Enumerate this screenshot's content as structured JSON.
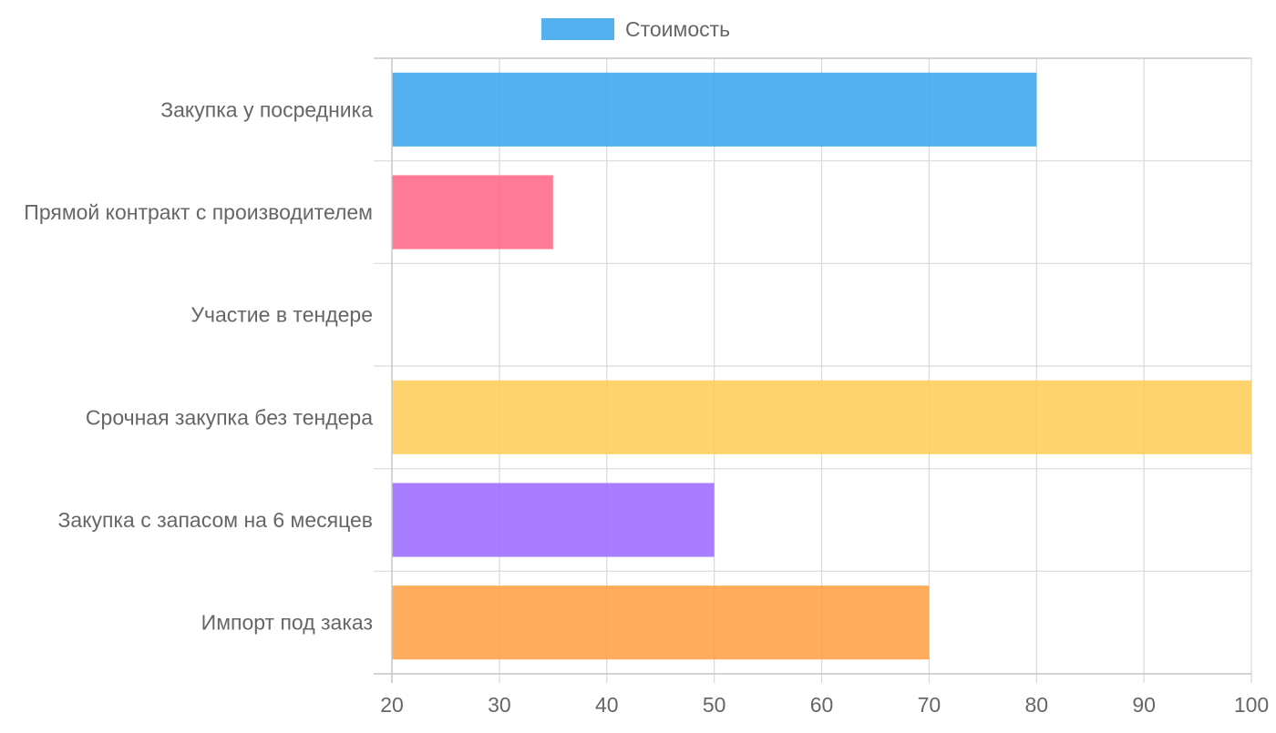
{
  "chart_data": {
    "type": "bar",
    "orientation": "horizontal",
    "legend": {
      "position": "top-center",
      "entries": [
        {
          "label": "Стоимость",
          "color": "#36a2eb"
        }
      ]
    },
    "series": [
      {
        "name": "Стоимость",
        "values": [
          80,
          35,
          20,
          100,
          50,
          70
        ]
      }
    ],
    "categories": [
      "Закупка у посредника",
      "Прямой контракт с производителем",
      "Участие в тендере",
      "Срочная закупка без тендера",
      "Закупка с запасом на 6 месяцев",
      "Импорт под заказ"
    ],
    "colors": [
      "#36a2eb",
      "#ff6384",
      "#4bc0c0",
      "#ffcd56",
      "#9966ff",
      "#ff9f40"
    ],
    "xlim": [
      20,
      100
    ],
    "xticks": [
      "20",
      "30",
      "40",
      "50",
      "60",
      "70",
      "80",
      "90",
      "100"
    ],
    "grid": true
  }
}
